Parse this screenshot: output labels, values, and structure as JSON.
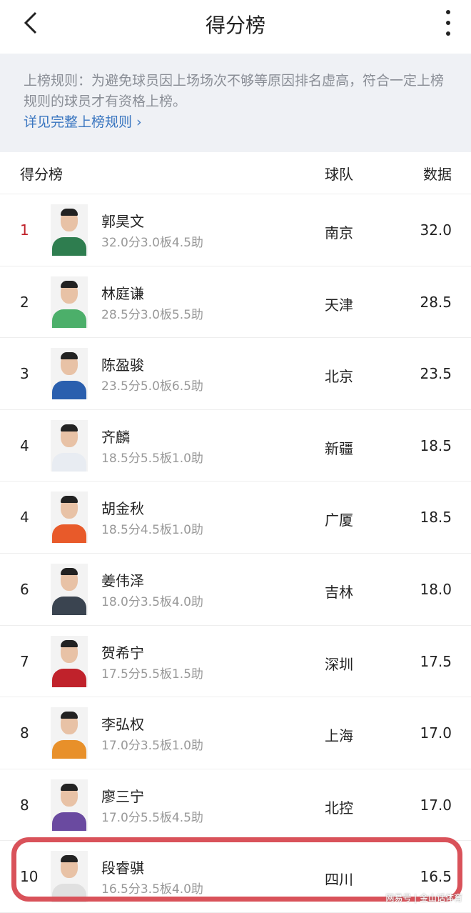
{
  "header": {
    "title": "得分榜",
    "back_icon": "chevron-left-icon",
    "more_icon": "more-vertical-icon"
  },
  "notice": {
    "text": "上榜规则：为避免球员因上场场次不够等原因排名虚高，符合一定上榜规则的球员才有资格上榜。",
    "link": "详见完整上榜规则 ›"
  },
  "list_header": {
    "col1": "得分榜",
    "col2": "球队",
    "col3": "数据"
  },
  "accent_color": "#c0222b",
  "highlight_color": "#d9525a",
  "rows": [
    {
      "rank": "1",
      "name": "郭昊文",
      "stat": "32.0分3.0板4.5助",
      "team": "南京",
      "value": "32.0",
      "jersey": "#2e7d4f"
    },
    {
      "rank": "2",
      "name": "林庭谦",
      "stat": "28.5分3.0板5.5助",
      "team": "天津",
      "value": "28.5",
      "jersey": "#4caf6a"
    },
    {
      "rank": "3",
      "name": "陈盈骏",
      "stat": "23.5分5.0板6.5助",
      "team": "北京",
      "value": "23.5",
      "jersey": "#2a5fae"
    },
    {
      "rank": "4",
      "name": "齐麟",
      "stat": "18.5分5.5板1.0助",
      "team": "新疆",
      "value": "18.5",
      "jersey": "#e8ecf2"
    },
    {
      "rank": "4",
      "name": "胡金秋",
      "stat": "18.5分4.5板1.0助",
      "team": "广厦",
      "value": "18.5",
      "jersey": "#e85a2a"
    },
    {
      "rank": "6",
      "name": "姜伟泽",
      "stat": "18.0分3.5板4.0助",
      "team": "吉林",
      "value": "18.0",
      "jersey": "#3a4450"
    },
    {
      "rank": "7",
      "name": "贺希宁",
      "stat": "17.5分5.5板1.5助",
      "team": "深圳",
      "value": "17.5",
      "jersey": "#c0222b"
    },
    {
      "rank": "8",
      "name": "李弘权",
      "stat": "17.0分3.5板1.0助",
      "team": "上海",
      "value": "17.0",
      "jersey": "#e8902a"
    },
    {
      "rank": "8",
      "name": "廖三宁",
      "stat": "17.0分5.5板4.5助",
      "team": "北控",
      "value": "17.0",
      "jersey": "#6a4aa0"
    },
    {
      "rank": "10",
      "name": "段睿骐",
      "stat": "16.5分3.5板4.0助",
      "team": "四川",
      "value": "16.5",
      "jersey": "#e0e0e0"
    }
  ],
  "watermark": "网易号 | 金山话体育"
}
